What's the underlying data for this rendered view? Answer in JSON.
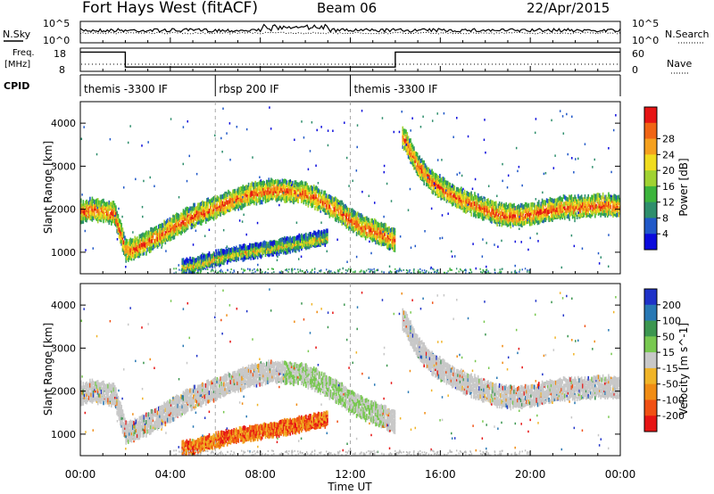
{
  "header": {
    "station": "Fort Hays West (fitACF)",
    "beam": "Beam 06",
    "date": "22/Apr/2015"
  },
  "top_panels": {
    "nsky_label": "N.Sky",
    "nsearch_label": "N.Search",
    "noise_ticks": [
      "10^5",
      "10^0"
    ],
    "freq_label": "Freq.",
    "freq_unit": "[MHz]",
    "freq_ticks": [
      "18",
      "8"
    ],
    "nave_label": "Nave",
    "nave_ticks": [
      "60",
      "0"
    ],
    "cpid_label": "CPID",
    "cpid_segments": [
      {
        "label": "themis -3300 IF",
        "start_h": 0,
        "end_h": 6
      },
      {
        "label": "rbsp 200 IF",
        "start_h": 6,
        "end_h": 12
      },
      {
        "label": "themis -3300 IF",
        "start_h": 12,
        "end_h": 24
      }
    ],
    "freq_steps": [
      {
        "start_h": 0,
        "end_h": 2,
        "mhz": 17
      },
      {
        "start_h": 2,
        "end_h": 14,
        "mhz": 10
      },
      {
        "start_h": 14,
        "end_h": 24,
        "mhz": 17
      }
    ]
  },
  "chart_data": [
    {
      "type": "heatmap",
      "title": "",
      "ylabel": "Slant Range [km]",
      "xlim": [
        0,
        24
      ],
      "ylim": [
        500,
        4500
      ],
      "yticks": [
        1000,
        2000,
        3000,
        4000
      ],
      "colorbar": {
        "label": "Power [dB]",
        "ticks": [
          "4",
          "8",
          "12",
          "16",
          "20",
          "24",
          "28"
        ],
        "colors": [
          "#0a0adc",
          "#2058c8",
          "#2e8e6c",
          "#3cb43c",
          "#a0d232",
          "#f0dc1e",
          "#f5a01e",
          "#f06414",
          "#e61414"
        ]
      },
      "echo_bands": [
        {
          "name": "main band A",
          "x": [
            0,
            0.5,
            1,
            1.5,
            2,
            2.5,
            3,
            3.5,
            4,
            4.5,
            5,
            5.5,
            6,
            6.5,
            7,
            7.5,
            8,
            8.5,
            9,
            9.5,
            10,
            10.5,
            11,
            11.5,
            12,
            12.5,
            13,
            13.5,
            14
          ],
          "y": [
            1950,
            2000,
            1950,
            1900,
            1050,
            1100,
            1250,
            1400,
            1550,
            1700,
            1850,
            1950,
            2050,
            2150,
            2250,
            2350,
            2400,
            2450,
            2450,
            2400,
            2350,
            2250,
            2100,
            1950,
            1750,
            1600,
            1500,
            1400,
            1250
          ]
        },
        {
          "name": "lower band",
          "x": [
            4.5,
            5,
            5.5,
            6,
            6.5,
            7,
            7.5,
            8,
            8.5,
            9,
            9.5,
            10,
            10.5,
            11
          ],
          "y": [
            650,
            700,
            780,
            850,
            920,
            980,
            1020,
            1060,
            1100,
            1150,
            1200,
            1250,
            1300,
            1350
          ]
        },
        {
          "name": "main band B",
          "x": [
            14.3,
            14.5,
            15,
            15.5,
            16,
            16.5,
            17,
            17.5,
            18,
            18.5,
            19,
            19.5,
            20,
            20.5,
            21,
            21.5,
            22,
            22.5,
            23,
            23.5,
            24
          ],
          "y": [
            3700,
            3500,
            3000,
            2700,
            2500,
            2350,
            2200,
            2100,
            2000,
            1900,
            1850,
            1850,
            1900,
            1950,
            2000,
            2050,
            2050,
            2050,
            2100,
            2100,
            2050
          ]
        }
      ]
    },
    {
      "type": "heatmap",
      "title": "",
      "ylabel": "Slant Range [km]",
      "xlabel": "Time UT",
      "xlim": [
        0,
        24
      ],
      "ylim": [
        500,
        4500
      ],
      "yticks": [
        1000,
        2000,
        3000,
        4000
      ],
      "xticks": [
        "00:00",
        "04:00",
        "08:00",
        "12:00",
        "16:00",
        "20:00",
        "00:00"
      ],
      "colorbar": {
        "label": "Velocity [m s^-1]",
        "ticks": [
          "200",
          "100",
          "50",
          "15",
          "-15",
          "-50",
          "-100",
          "-200"
        ],
        "colors": [
          "#1e32c8",
          "#2878b4",
          "#3c9650",
          "#78c850",
          "#c8c8c8",
          "#f0b428",
          "#f08c14",
          "#f05014",
          "#e61414"
        ]
      }
    }
  ]
}
